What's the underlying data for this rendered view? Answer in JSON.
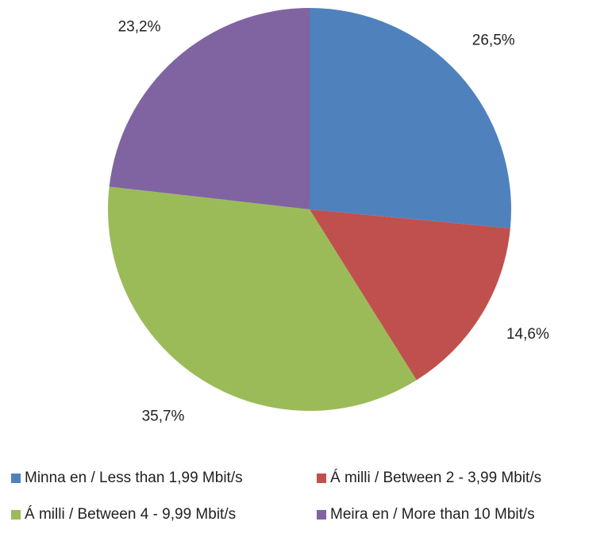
{
  "chart_data": {
    "type": "pie",
    "title": "",
    "slices": [
      {
        "label": "Minna en / Less than 1,99 Mbit/s",
        "value": 26.5,
        "display": "26,5%",
        "color": "#4f81bd"
      },
      {
        "label": "Á milli / Between 2 - 3,99 Mbit/s",
        "value": 14.6,
        "display": "14,6%",
        "color": "#c0504d"
      },
      {
        "label": "Á milli / Between 4 - 9,99 Mbit/s",
        "value": 35.7,
        "display": "35,7%",
        "color": "#9bbb59"
      },
      {
        "label": "Meira en / More than 10 Mbit/s",
        "value": 23.2,
        "display": "23,2%",
        "color": "#8064a2"
      }
    ],
    "legend_position": "bottom"
  }
}
